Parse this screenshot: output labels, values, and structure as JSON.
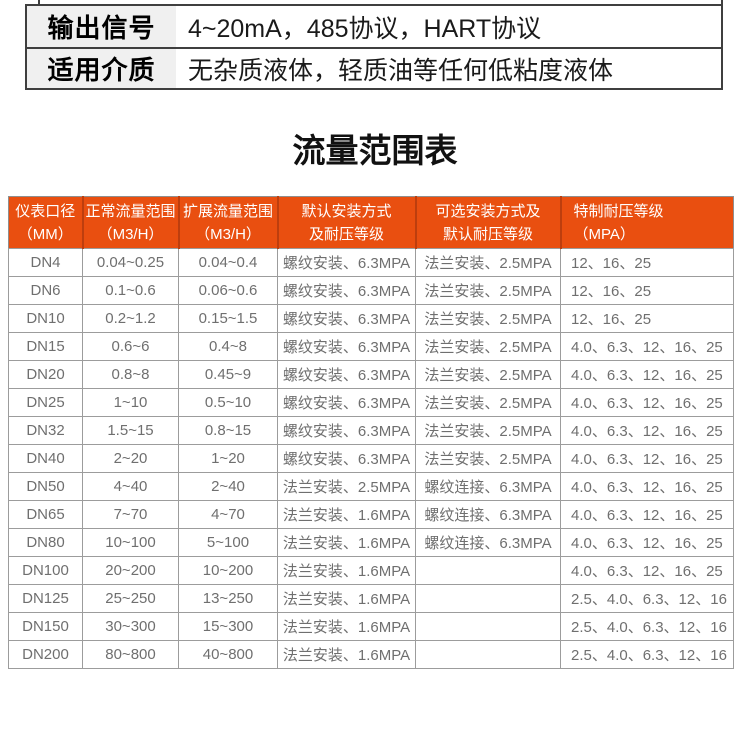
{
  "spec_table": {
    "rows": [
      {
        "label": "输出信号",
        "value": "4~20mA，485协议，HART协议"
      },
      {
        "label": "适用介质",
        "value": "无杂质液体，轻质油等任何低粘度液体"
      }
    ]
  },
  "title": "流量范围表",
  "flow_table": {
    "headers": [
      {
        "line1": "仪表口径",
        "line2": "（MM）"
      },
      {
        "line1": "正常流量范围",
        "line2": "（M3/H）"
      },
      {
        "line1": "扩展流量范围",
        "line2": "（M3/H）"
      },
      {
        "line1": "默认安装方式",
        "line2": "及耐压等级"
      },
      {
        "line1": "可选安装方式及",
        "line2": "默认耐压等级"
      },
      {
        "line1": "特制耐压等级",
        "line2": "（MPA）"
      }
    ],
    "rows": [
      [
        "DN4",
        "0.04~0.25",
        "0.04~0.4",
        "螺纹安装、6.3MPA",
        "法兰安装、2.5MPA",
        "12、16、25"
      ],
      [
        "DN6",
        "0.1~0.6",
        "0.06~0.6",
        "螺纹安装、6.3MPA",
        "法兰安装、2.5MPA",
        "12、16、25"
      ],
      [
        "DN10",
        "0.2~1.2",
        "0.15~1.5",
        "螺纹安装、6.3MPA",
        "法兰安装、2.5MPA",
        "12、16、25"
      ],
      [
        "DN15",
        "0.6~6",
        "0.4~8",
        "螺纹安装、6.3MPA",
        "法兰安装、2.5MPA",
        "4.0、6.3、12、16、25"
      ],
      [
        "DN20",
        "0.8~8",
        "0.45~9",
        "螺纹安装、6.3MPA",
        "法兰安装、2.5MPA",
        "4.0、6.3、12、16、25"
      ],
      [
        "DN25",
        "1~10",
        "0.5~10",
        "螺纹安装、6.3MPA",
        "法兰安装、2.5MPA",
        "4.0、6.3、12、16、25"
      ],
      [
        "DN32",
        "1.5~15",
        "0.8~15",
        "螺纹安装、6.3MPA",
        "法兰安装、2.5MPA",
        "4.0、6.3、12、16、25"
      ],
      [
        "DN40",
        "2~20",
        "1~20",
        "螺纹安装、6.3MPA",
        "法兰安装、2.5MPA",
        "4.0、6.3、12、16、25"
      ],
      [
        "DN50",
        "4~40",
        "2~40",
        "法兰安装、2.5MPA",
        "螺纹连接、6.3MPA",
        "4.0、6.3、12、16、25"
      ],
      [
        "DN65",
        "7~70",
        "4~70",
        "法兰安装、1.6MPA",
        "螺纹连接、6.3MPA",
        "4.0、6.3、12、16、25"
      ],
      [
        "DN80",
        "10~100",
        "5~100",
        "法兰安装、1.6MPA",
        "螺纹连接、6.3MPA",
        "4.0、6.3、12、16、25"
      ],
      [
        "DN100",
        "20~200",
        "10~200",
        "法兰安装、1.6MPA",
        "",
        "4.0、6.3、12、16、25"
      ],
      [
        "DN125",
        "25~250",
        "13~250",
        "法兰安装、1.6MPA",
        "",
        "2.5、4.0、6.3、12、16"
      ],
      [
        "DN150",
        "30~300",
        "15~300",
        "法兰安装、1.6MPA",
        "",
        "2.5、4.0、6.3、12、16"
      ],
      [
        "DN200",
        "80~800",
        "40~800",
        "法兰安装、1.6MPA",
        "",
        "2.5、4.0、6.3、12、16"
      ]
    ],
    "colors": {
      "header_bg": "#e94f10",
      "header_divider": "#bd3e0e",
      "header_text": "#ffffff",
      "cell_text": "#6f6f6f",
      "grid": "#9c9c9c"
    }
  }
}
